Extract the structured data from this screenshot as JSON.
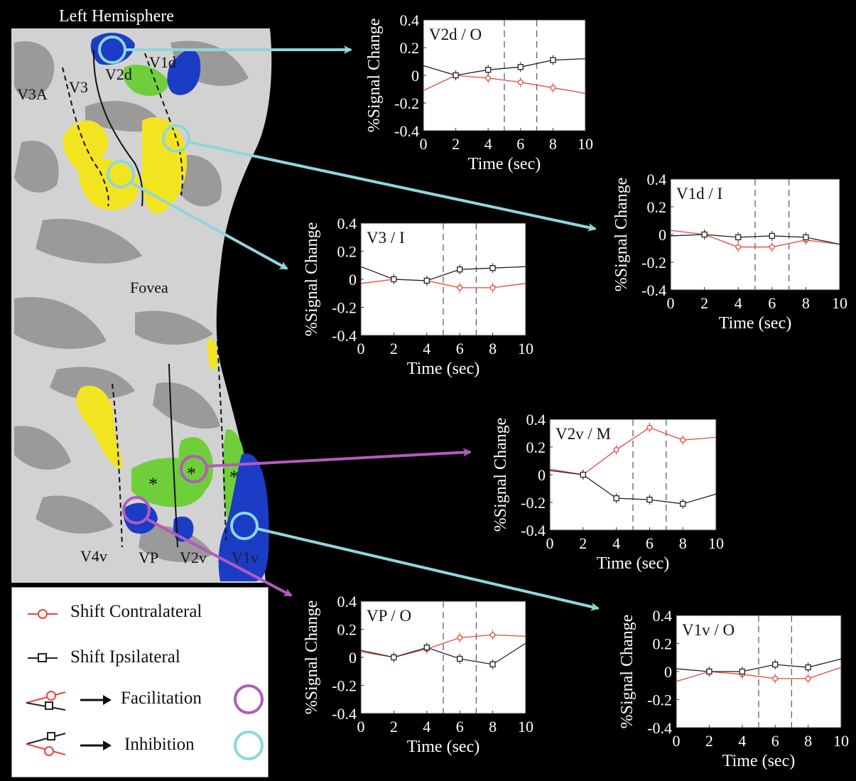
{
  "brain": {
    "title": "Left Hemisphere",
    "labels": {
      "v3a": "V3A",
      "v3": "V3",
      "v2d": "V2d",
      "v1d": "V1d",
      "fovea": "Fovea",
      "v4v": "V4v",
      "vp": "VP",
      "v2v": "V2v",
      "v1v": "V1v",
      "asterisk": "*"
    }
  },
  "legend": {
    "contralateral": "Shift Contralateral",
    "ipsilateral": "Shift Ipsilateral",
    "facilitation": "Facilitation",
    "inhibition": "Inhibition"
  },
  "colors": {
    "contralateral": "#e8453c",
    "ipsilateral": "#222222",
    "facilitation": "#b45ac0",
    "inhibition": "#8fd6dc",
    "yellow": "#f2e421",
    "green": "#6fcf3a",
    "blue": "#1b3cc4"
  },
  "chart_data": [
    {
      "type": "line",
      "title": "V2d / O",
      "xlabel": "Time (sec)",
      "ylabel": "%Signal Change",
      "xlim": [
        0,
        10
      ],
      "ylim": [
        -0.4,
        0.4
      ],
      "xticks": [
        "0",
        "2",
        "4",
        "6",
        "8",
        "10"
      ],
      "yticks": [
        "0.4",
        "0.2",
        "0",
        "-0.2",
        "-0.4"
      ],
      "vlines": [
        5,
        7
      ],
      "series": [
        {
          "key": "contralateral",
          "x": [
            0,
            2,
            4,
            6,
            8,
            10
          ],
          "y": [
            -0.11,
            0.0,
            -0.02,
            -0.05,
            -0.09,
            -0.13
          ]
        },
        {
          "key": "ipsilateral",
          "x": [
            0,
            2,
            4,
            6,
            8,
            10
          ],
          "y": [
            0.07,
            0.0,
            0.04,
            0.06,
            0.11,
            0.12
          ]
        }
      ]
    },
    {
      "type": "line",
      "title": "V1d / I",
      "xlabel": "Time (sec)",
      "ylabel": "%Signal Change",
      "xlim": [
        0,
        10
      ],
      "ylim": [
        -0.4,
        0.4
      ],
      "xticks": [
        "0",
        "2",
        "4",
        "6",
        "8",
        "10"
      ],
      "yticks": [
        "0.4",
        "0.2",
        "0",
        "-0.2",
        "-0.4"
      ],
      "vlines": [
        5,
        7
      ],
      "series": [
        {
          "key": "contralateral",
          "x": [
            0,
            2,
            4,
            6,
            8,
            10
          ],
          "y": [
            0.03,
            0.0,
            -0.09,
            -0.09,
            -0.04,
            -0.07
          ]
        },
        {
          "key": "ipsilateral",
          "x": [
            0,
            2,
            4,
            6,
            8,
            10
          ],
          "y": [
            -0.01,
            0.0,
            -0.02,
            -0.01,
            -0.02,
            -0.07
          ]
        }
      ]
    },
    {
      "type": "line",
      "title": "V3 / I",
      "xlabel": "Time (sec)",
      "ylabel": "%Signal Change",
      "xlim": [
        0,
        10
      ],
      "ylim": [
        -0.4,
        0.4
      ],
      "xticks": [
        "0",
        "2",
        "4",
        "6",
        "8",
        "10"
      ],
      "yticks": [
        "0.4",
        "0.2",
        "0",
        "-0.2",
        "-0.4"
      ],
      "vlines": [
        5,
        7
      ],
      "series": [
        {
          "key": "contralateral",
          "x": [
            0,
            2,
            4,
            6,
            8,
            10
          ],
          "y": [
            -0.03,
            0.0,
            -0.01,
            -0.06,
            -0.06,
            -0.03
          ]
        },
        {
          "key": "ipsilateral",
          "x": [
            0,
            2,
            4,
            6,
            8,
            10
          ],
          "y": [
            0.09,
            0.0,
            -0.01,
            0.07,
            0.08,
            0.09
          ]
        }
      ]
    },
    {
      "type": "line",
      "title": "V2v / M",
      "xlabel": "Time (sec)",
      "ylabel": "%Signal Change",
      "xlim": [
        0,
        10
      ],
      "ylim": [
        -0.4,
        0.4
      ],
      "xticks": [
        "0",
        "2",
        "4",
        "6",
        "8",
        "10"
      ],
      "yticks": [
        "0.4",
        "0.2",
        "0",
        "-0.2",
        "-0.4"
      ],
      "vlines": [
        5,
        7
      ],
      "series": [
        {
          "key": "contralateral",
          "x": [
            0,
            2,
            4,
            6,
            8,
            10
          ],
          "y": [
            0.04,
            0.0,
            0.18,
            0.34,
            0.25,
            0.27
          ]
        },
        {
          "key": "ipsilateral",
          "x": [
            0,
            2,
            4,
            6,
            8,
            10
          ],
          "y": [
            0.03,
            0.0,
            -0.17,
            -0.18,
            -0.21,
            -0.14
          ]
        }
      ]
    },
    {
      "type": "line",
      "title": "VP / O",
      "xlabel": "Time (sec)",
      "ylabel": "%Signal Change",
      "xlim": [
        0,
        10
      ],
      "ylim": [
        -0.4,
        0.4
      ],
      "xticks": [
        "0",
        "2",
        "4",
        "6",
        "8",
        "10"
      ],
      "yticks": [
        "0.4",
        "0.2",
        "0",
        "-0.2",
        "-0.4"
      ],
      "vlines": [
        5,
        7
      ],
      "series": [
        {
          "key": "contralateral",
          "x": [
            0,
            2,
            4,
            6,
            8,
            10
          ],
          "y": [
            0.04,
            0.0,
            0.06,
            0.14,
            0.16,
            0.15
          ]
        },
        {
          "key": "ipsilateral",
          "x": [
            0,
            2,
            4,
            6,
            8,
            10
          ],
          "y": [
            0.05,
            0.0,
            0.07,
            -0.01,
            -0.05,
            0.1
          ]
        }
      ]
    },
    {
      "type": "line",
      "title": "V1v / O",
      "xlabel": "Time (sec)",
      "ylabel": "%Signal Change",
      "xlim": [
        0,
        10
      ],
      "ylim": [
        -0.4,
        0.4
      ],
      "xticks": [
        "0",
        "2",
        "4",
        "6",
        "8",
        "10"
      ],
      "yticks": [
        "0.4",
        "0.2",
        "0",
        "-0.2",
        "-0.4"
      ],
      "vlines": [
        5,
        7
      ],
      "series": [
        {
          "key": "contralateral",
          "x": [
            0,
            2,
            4,
            6,
            8,
            10
          ],
          "y": [
            -0.07,
            0.0,
            -0.02,
            -0.05,
            -0.05,
            0.03
          ]
        },
        {
          "key": "ipsilateral",
          "x": [
            0,
            2,
            4,
            6,
            8,
            10
          ],
          "y": [
            0.02,
            0.0,
            0.0,
            0.05,
            0.03,
            0.09
          ]
        }
      ]
    }
  ]
}
